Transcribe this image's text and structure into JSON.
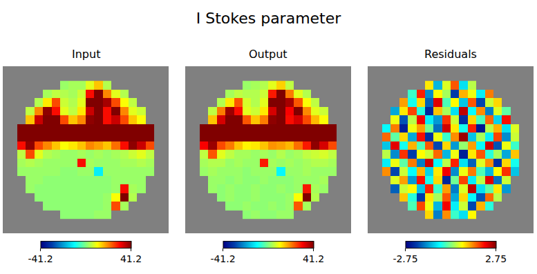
{
  "chart_data": {
    "type": "heatmap",
    "title": "I Stokes parameter",
    "tick_labels": false,
    "panels": [
      {
        "title": "Input",
        "xlim": [
          -2.2,
          17.2
        ],
        "ylim": [
          17.2,
          -2.2
        ],
        "zlim": [
          -41.2,
          41.2
        ],
        "zticks": [
          -41.2,
          41.2
        ],
        "cells": [
          [
            null,
            null,
            null,
            null,
            null,
            2,
            3,
            3,
            8,
            15,
            4,
            null,
            null,
            null,
            null,
            null
          ],
          [
            null,
            null,
            null,
            3,
            5,
            4,
            3,
            6,
            30,
            45,
            20,
            8,
            4,
            null,
            null,
            null
          ],
          [
            null,
            null,
            4,
            12,
            25,
            6,
            4,
            8,
            50,
            60,
            38,
            25,
            10,
            5,
            null,
            null
          ],
          [
            null,
            5,
            20,
            40,
            30,
            8,
            5,
            12,
            35,
            55,
            30,
            45,
            20,
            8,
            6,
            null
          ],
          [
            null,
            15,
            35,
            50,
            45,
            25,
            15,
            20,
            40,
            45,
            30,
            35,
            25,
            15,
            10,
            null
          ],
          [
            60,
            80,
            90,
            85,
            70,
            75,
            80,
            90,
            85,
            80,
            75,
            85,
            90,
            80,
            70,
            60
          ],
          [
            70,
            85,
            95,
            100,
            90,
            85,
            90,
            95,
            100,
            90,
            85,
            95,
            100,
            90,
            80,
            65
          ],
          [
            30,
            40,
            25,
            20,
            15,
            10,
            12,
            15,
            20,
            18,
            15,
            22,
            30,
            40,
            35,
            25
          ],
          [
            5,
            25,
            8,
            4,
            3,
            2,
            2,
            3,
            2,
            3,
            2,
            3,
            4,
            6,
            8,
            5
          ],
          [
            3,
            4,
            3,
            2,
            2,
            2,
            2,
            30,
            3,
            2,
            2,
            2,
            3,
            3,
            4,
            3
          ],
          [
            2,
            2,
            2,
            2,
            2,
            1,
            1,
            2,
            2,
            -12,
            2,
            2,
            2,
            2,
            2,
            2
          ],
          [
            null,
            2,
            2,
            1,
            1,
            1,
            1,
            1,
            1,
            1,
            1,
            2,
            2,
            2,
            2,
            null
          ],
          [
            null,
            2,
            1,
            1,
            1,
            1,
            1,
            1,
            1,
            1,
            1,
            2,
            30,
            3,
            2,
            null
          ],
          [
            null,
            null,
            1,
            1,
            1,
            1,
            1,
            1,
            1,
            1,
            2,
            10,
            50,
            4,
            null,
            null
          ],
          [
            null,
            null,
            null,
            1,
            1,
            1,
            1,
            1,
            1,
            1,
            2,
            25,
            3,
            null,
            null,
            null
          ],
          [
            null,
            null,
            null,
            null,
            null,
            1,
            1,
            1,
            1,
            2,
            2,
            null,
            null,
            null,
            null,
            null
          ]
        ]
      },
      {
        "title": "Output",
        "xlim": [
          -2.2,
          17.2
        ],
        "ylim": [
          17.2,
          -2.2
        ],
        "zlim": [
          -41.2,
          41.2
        ],
        "zticks": [
          -41.2,
          41.2
        ],
        "cells": [
          [
            null,
            null,
            null,
            null,
            null,
            2,
            3,
            4,
            8,
            14,
            5,
            null,
            null,
            null,
            null,
            null
          ],
          [
            null,
            null,
            null,
            3,
            5,
            4,
            4,
            6,
            29,
            44,
            21,
            8,
            4,
            null,
            null,
            null
          ],
          [
            null,
            null,
            4,
            12,
            24,
            7,
            4,
            8,
            49,
            59,
            38,
            24,
            10,
            5,
            null,
            null
          ],
          [
            null,
            5,
            21,
            39,
            30,
            8,
            6,
            12,
            34,
            54,
            31,
            44,
            20,
            8,
            6,
            null
          ],
          [
            null,
            15,
            34,
            49,
            45,
            24,
            15,
            21,
            40,
            44,
            30,
            34,
            25,
            16,
            10,
            null
          ],
          [
            59,
            80,
            89,
            85,
            71,
            74,
            80,
            89,
            85,
            79,
            75,
            84,
            90,
            80,
            69,
            60
          ],
          [
            70,
            84,
            95,
            99,
            90,
            86,
            89,
            95,
            99,
            90,
            86,
            95,
            99,
            90,
            79,
            66
          ],
          [
            31,
            39,
            25,
            21,
            15,
            11,
            12,
            15,
            19,
            18,
            16,
            22,
            29,
            40,
            34,
            25
          ],
          [
            5,
            24,
            8,
            5,
            3,
            3,
            2,
            3,
            2,
            4,
            2,
            3,
            5,
            6,
            7,
            5
          ],
          [
            3,
            4,
            4,
            2,
            3,
            2,
            2,
            29,
            3,
            2,
            3,
            2,
            3,
            4,
            4,
            3
          ],
          [
            2,
            3,
            2,
            2,
            2,
            1,
            2,
            2,
            2,
            -11,
            2,
            2,
            3,
            2,
            2,
            2
          ],
          [
            null,
            2,
            2,
            1,
            2,
            1,
            1,
            2,
            1,
            1,
            1,
            2,
            2,
            2,
            3,
            null
          ],
          [
            null,
            2,
            1,
            2,
            1,
            1,
            2,
            1,
            1,
            2,
            1,
            2,
            29,
            3,
            2,
            null
          ],
          [
            null,
            null,
            1,
            2,
            1,
            1,
            2,
            1,
            1,
            1,
            2,
            10,
            49,
            4,
            null,
            null
          ],
          [
            null,
            null,
            null,
            1,
            1,
            2,
            1,
            1,
            2,
            1,
            2,
            24,
            3,
            null,
            null,
            null
          ],
          [
            null,
            null,
            null,
            null,
            null,
            1,
            2,
            1,
            1,
            2,
            2,
            null,
            null,
            null,
            null,
            null
          ]
        ]
      },
      {
        "title": "Residuals",
        "xlim": [
          -2.2,
          17.2
        ],
        "ylim": [
          17.2,
          -2.2
        ],
        "zlim": [
          -2.75,
          2.75
        ],
        "zticks": [
          -2.75,
          2.75
        ],
        "cells": [
          [
            null,
            null,
            null,
            null,
            null,
            0.8,
            -1.2,
            0.5,
            1.6,
            -0.9,
            0.3,
            null,
            null,
            null,
            null,
            null
          ],
          [
            null,
            null,
            null,
            -0.4,
            1.9,
            -1.5,
            0.7,
            0.2,
            -2.1,
            1.1,
            0.6,
            -0.8,
            1.4,
            null,
            null,
            null
          ],
          [
            null,
            null,
            1.2,
            -0.6,
            0.9,
            -1.8,
            2.2,
            -0.3,
            0.7,
            -1.1,
            1.6,
            -2.0,
            0.4,
            0.9,
            null,
            null
          ],
          [
            null,
            -1.3,
            0.8,
            1.7,
            -0.5,
            -2.3,
            1.0,
            0.2,
            -0.9,
            2.4,
            -0.7,
            1.3,
            -1.6,
            0.5,
            -0.2,
            null
          ],
          [
            null,
            0.6,
            -1.9,
            0.3,
            2.1,
            -0.8,
            -1.4,
            1.8,
            0.4,
            -2.2,
            0.9,
            -0.3,
            1.5,
            -1.0,
            2.0,
            null
          ],
          [
            -0.7,
            1.4,
            -2.4,
            0.6,
            1.2,
            -0.1,
            -1.7,
            2.3,
            0.8,
            -0.6,
            1.9,
            -2.5,
            0.3,
            1.1,
            -0.9,
            0.5
          ],
          [
            1.5,
            -0.2,
            0.9,
            -1.3,
            2.0,
            -2.2,
            0.6,
            -0.4,
            1.3,
            2.6,
            -1.1,
            0.2,
            -0.8,
            1.7,
            -1.5,
            0.4
          ],
          [
            -1.1,
            2.2,
            -0.6,
            1.1,
            -0.3,
            1.6,
            -2.0,
            0.9,
            -1.4,
            0.1,
            1.2,
            -0.7,
            2.3,
            -1.9,
            0.6,
            -0.4
          ],
          [
            0.3,
            -1.5,
            1.8,
            -2.1,
            0.7,
            0.4,
            1.5,
            -1.2,
            0.6,
            -2.4,
            0.8,
            1.6,
            -0.5,
            0.2,
            -1.3,
            1.0
          ],
          [
            -0.8,
            0.6,
            -0.2,
            1.4,
            -1.6,
            2.3,
            -0.7,
            0.3,
            1.9,
            -0.9,
            -1.8,
            0.5,
            1.3,
            -2.2,
            0.9,
            -0.6
          ],
          [
            1.3,
            -2.0,
            0.4,
            -0.7,
            1.1,
            -1.0,
            0.8,
            2.1,
            -1.5,
            0.6,
            1.4,
            -0.3,
            -1.2,
            0.7,
            1.8,
            -1.1
          ],
          [
            null,
            0.5,
            1.2,
            -1.4,
            2.0,
            -0.6,
            0.9,
            -2.3,
            -0.1,
            1.7,
            -0.8,
            0.3,
            2.2,
            -1.7,
            0.4,
            null
          ],
          [
            null,
            -1.8,
            0.4,
            0.7,
            -1.1,
            1.9,
            -0.4,
            1.2,
            -1.6,
            0.5,
            2.4,
            -0.9,
            -0.2,
            0.8,
            -1.4,
            null
          ],
          [
            null,
            null,
            1.0,
            -0.5,
            -2.1,
            0.8,
            0.2,
            1.6,
            -1.3,
            0.9,
            -0.7,
            -1.9,
            1.5,
            0.3,
            null,
            null
          ],
          [
            null,
            null,
            null,
            -0.3,
            1.7,
            0.6,
            -1.2,
            2.1,
            -0.8,
            0.4,
            -2.0,
            1.1,
            -0.5,
            null,
            null,
            null
          ],
          [
            null,
            null,
            null,
            null,
            null,
            0.9,
            -1.6,
            1.3,
            -0.4,
            -0.9,
            0.7,
            null,
            null,
            null,
            null,
            null
          ]
        ]
      }
    ]
  }
}
